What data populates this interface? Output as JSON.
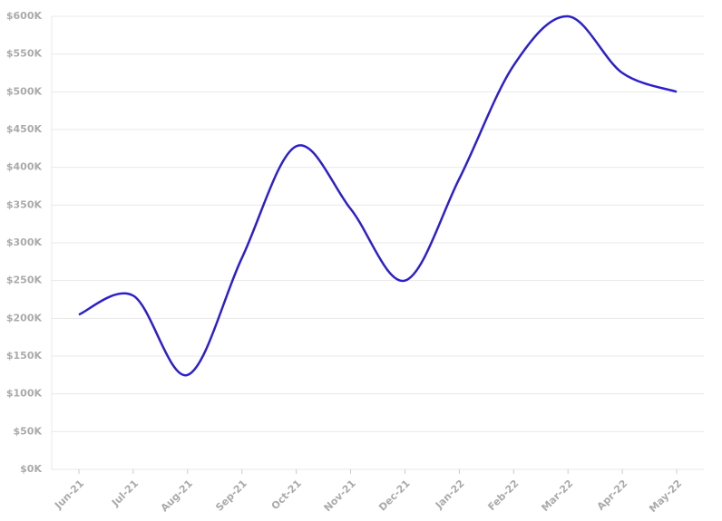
{
  "chart_data": {
    "type": "line",
    "categories": [
      "Jun-21",
      "Jul-21",
      "Aug-21",
      "Sep-21",
      "Oct-21",
      "Nov-21",
      "Dec-21",
      "Jan-22",
      "Feb-22",
      "Mar-22",
      "Apr-22",
      "May-22"
    ],
    "series": [
      {
        "color": "#2d1fcc",
        "values": [
          205000,
          230000,
          125000,
          280000,
          428000,
          345000,
          250000,
          385000,
          535000,
          600000,
          525000,
          500000
        ]
      }
    ],
    "ylim": [
      0,
      600000
    ],
    "yticks": [
      {
        "value": 0,
        "label": "$0K"
      },
      {
        "value": 50000,
        "label": "$50K"
      },
      {
        "value": 100000,
        "label": "$100K"
      },
      {
        "value": 150000,
        "label": "$150K"
      },
      {
        "value": 200000,
        "label": "$200K"
      },
      {
        "value": 250000,
        "label": "$250K"
      },
      {
        "value": 300000,
        "label": "$300K"
      },
      {
        "value": 350000,
        "label": "$350K"
      },
      {
        "value": 400000,
        "label": "$400K"
      },
      {
        "value": 450000,
        "label": "$450K"
      },
      {
        "value": 500000,
        "label": "$500K"
      },
      {
        "value": 550000,
        "label": "$550K"
      },
      {
        "value": 600000,
        "label": "$600K"
      }
    ],
    "grid": true,
    "smooth": true
  }
}
